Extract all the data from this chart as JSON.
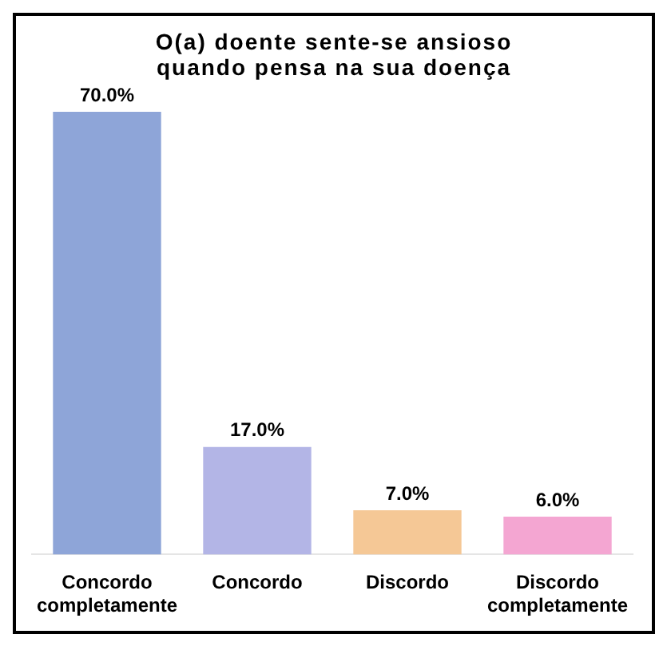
{
  "chart_data": {
    "type": "bar",
    "title": "O(a) doente sente-se ansioso quando pensa na sua doença",
    "categories": [
      "Concordo completamente",
      "Concordo",
      "Discordo",
      "Discordo completamente"
    ],
    "values": [
      70,
      17,
      7,
      6
    ],
    "colors": [
      "#8ea5d8",
      "#b3b5e6",
      "#f5c896",
      "#f4a6d2"
    ],
    "value_labels": [
      "70.0%",
      "17.0%",
      "7.0%",
      "6.0%"
    ],
    "legend": false
  }
}
